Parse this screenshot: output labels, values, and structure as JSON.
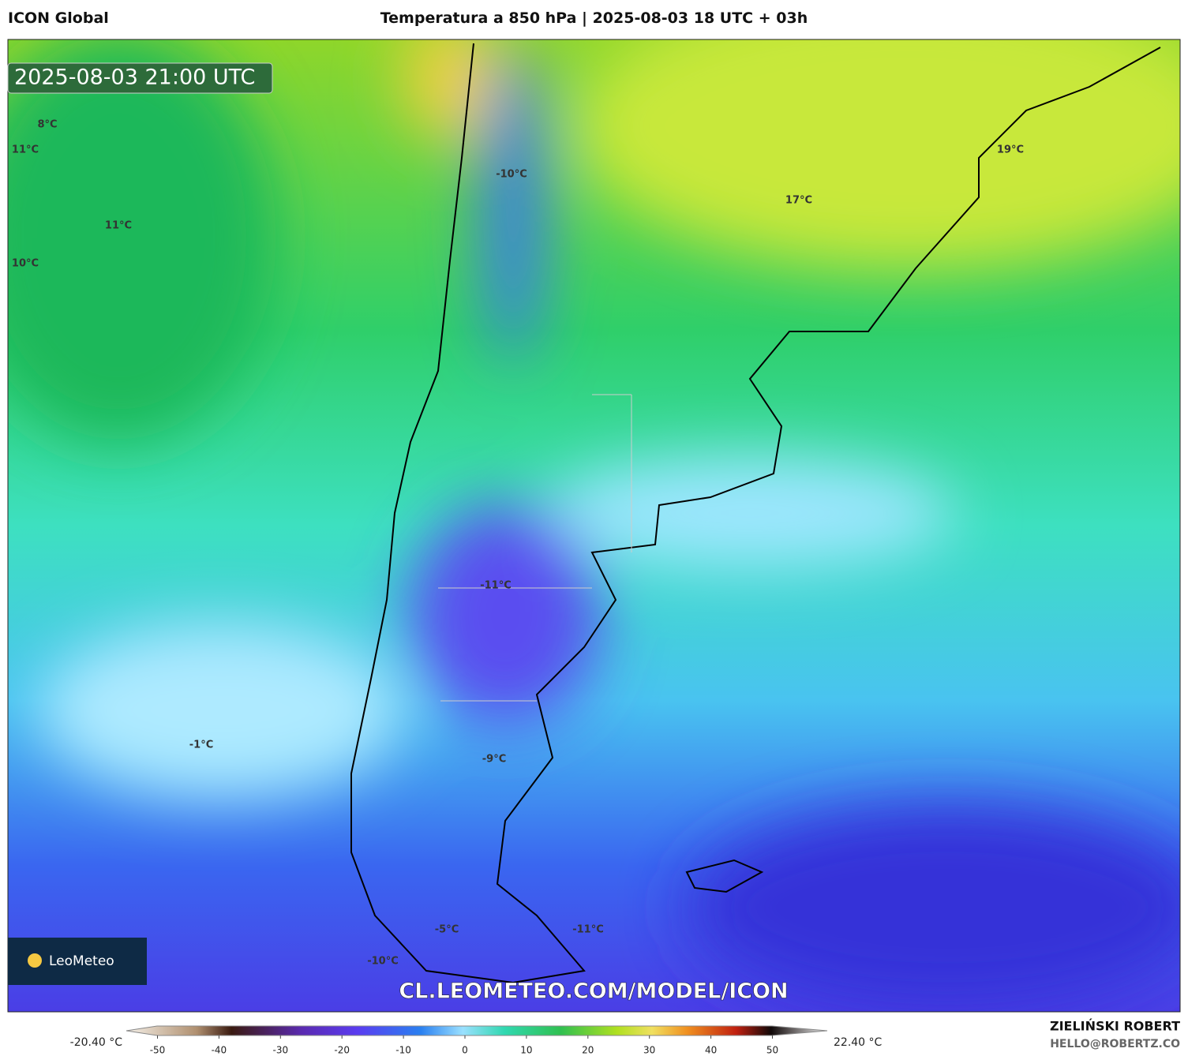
{
  "header": {
    "model": "ICON Global",
    "title": "Temperatura a 850 hPa | 2025-08-03 18 UTC + 03h"
  },
  "map": {
    "timestamp": "2025-08-03 21:00 UTC",
    "labels": [
      "8°C",
      "11°C",
      "11°C",
      "10°C",
      "-10°C",
      "17°C",
      "19°C",
      "-11°C",
      "-1°C",
      "-9°C",
      "-5°C",
      "-11°C",
      "-10°C"
    ],
    "watermark": "CL.LEOMETEO.COM/MODEL/ICON",
    "logo": "LeoMeteo"
  },
  "colorbar": {
    "min_label": "-20.40 °C",
    "max_label": "22.40 °C",
    "ticks": [
      -50,
      -40,
      -30,
      -20,
      -10,
      0,
      10,
      20,
      30,
      40,
      50
    ]
  },
  "footer": {
    "author": "ZIELIŃSKI ROBERT",
    "contact": "HELLO@ROBERTZ.CO"
  }
}
